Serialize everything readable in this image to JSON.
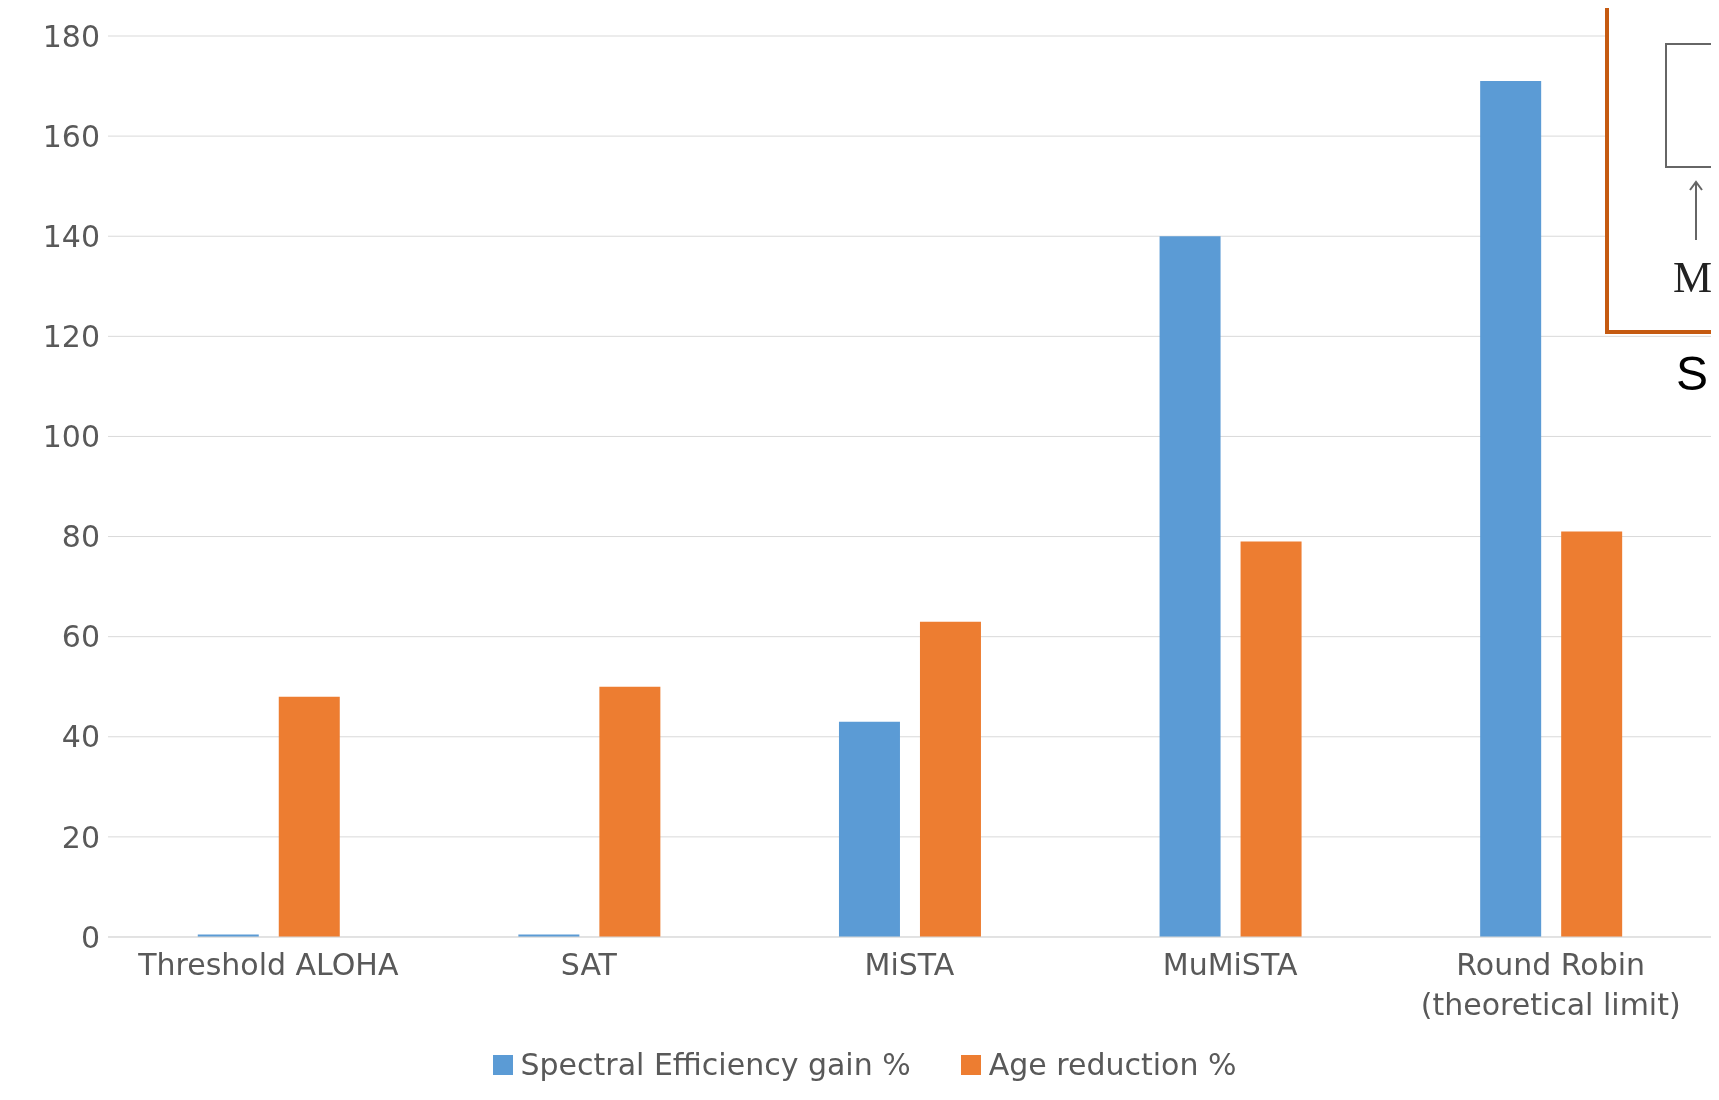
{
  "chart_data": {
    "type": "bar",
    "categories": [
      "Threshold ALOHA",
      "SAT",
      "MiSTA",
      "MuMiSTA",
      "Round Robin\n(theoretical limit)"
    ],
    "series": [
      {
        "name": "Spectral Efficiency gain %",
        "color": "#5b9bd5",
        "values": [
          0.5,
          0.5,
          43,
          140,
          171
        ]
      },
      {
        "name": "Age reduction %",
        "color": "#ed7d31",
        "values": [
          48,
          50,
          63,
          79,
          81
        ]
      }
    ],
    "ylim": [
      0,
      180
    ],
    "yticks": [
      0,
      20,
      40,
      60,
      80,
      100,
      120,
      140,
      160,
      180
    ],
    "grid": "y",
    "legend": "bottom",
    "annotations": [
      "M",
      "S"
    ]
  }
}
